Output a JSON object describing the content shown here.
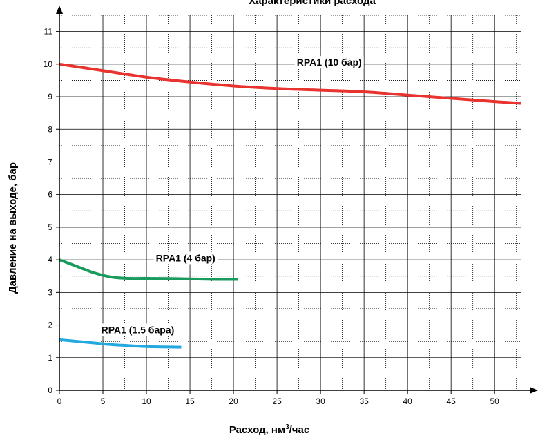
{
  "chart_data": {
    "type": "line",
    "title": "Характеристики расхода",
    "xlabel": "Расход, нм",
    "xlabel_sup": "3",
    "xlabel_suffix": "/час",
    "ylabel": "Давление на выходе, бар",
    "xlim": [
      0,
      53
    ],
    "ylim": [
      0,
      11.5
    ],
    "xticks": [
      0,
      5,
      10,
      15,
      20,
      25,
      30,
      35,
      40,
      45,
      50
    ],
    "yticks": [
      0,
      1,
      2,
      3,
      4,
      5,
      6,
      7,
      8,
      9,
      10,
      11
    ],
    "grid": true,
    "series": [
      {
        "name": "RPA1 (10 бар)",
        "color": "#e8332f",
        "x": [
          0,
          5,
          10,
          15,
          20,
          25,
          30,
          35,
          40,
          45,
          50,
          53
        ],
        "y": [
          10.0,
          9.8,
          9.6,
          9.45,
          9.33,
          9.25,
          9.2,
          9.15,
          9.05,
          8.95,
          8.85,
          8.8
        ]
      },
      {
        "name": "RPA1 (4 бар)",
        "color": "#1a9b5e",
        "x": [
          0,
          2,
          4,
          6,
          8,
          10,
          14,
          18,
          20.5
        ],
        "y": [
          4.0,
          3.8,
          3.6,
          3.47,
          3.43,
          3.43,
          3.42,
          3.4,
          3.4
        ]
      },
      {
        "name": "RPA1 (1.5 бара)",
        "color": "#23a8e0",
        "x": [
          0,
          2,
          4,
          6,
          8,
          10,
          12,
          14
        ],
        "y": [
          1.55,
          1.5,
          1.45,
          1.4,
          1.37,
          1.34,
          1.33,
          1.32
        ]
      }
    ]
  }
}
